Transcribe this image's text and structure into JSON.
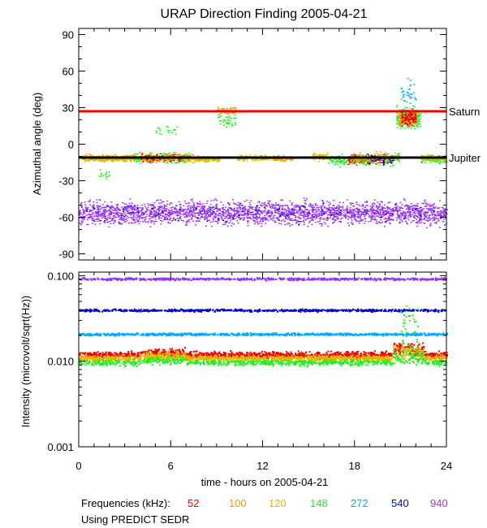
{
  "chart_data": {
    "title": "URAP Direction Finding  2005-04-21",
    "type": "scatter",
    "x": {
      "label": "time - hours on 2005-04-21",
      "range": [
        0,
        24
      ],
      "ticks": [
        0,
        6,
        12,
        18,
        24
      ],
      "tick_labels": [
        "0",
        "6",
        "12",
        "18",
        "24"
      ]
    },
    "panels": [
      {
        "name": "azimuth",
        "ylabel": "Azimuthal angle (deg)",
        "ylim": [
          -95,
          95
        ],
        "yticks": [
          90,
          60,
          30,
          0,
          -30,
          -60,
          -90
        ],
        "ytick_labels": [
          "90",
          "60",
          "30",
          "0",
          "-30",
          "-60",
          "-90"
        ],
        "reference_lines": [
          {
            "name": "Saturn",
            "y": 27,
            "color": "#ee0000"
          },
          {
            "name": "Jupiter",
            "y": -11,
            "color": "#000000"
          }
        ],
        "bands": [
          {
            "frequency": "940",
            "center": -56,
            "spread": 6,
            "x_range": [
              0,
              24
            ]
          },
          {
            "frequency": "120",
            "center": -11,
            "spread": 3,
            "x_range": [
              0,
              20
            ]
          },
          {
            "frequency": "148",
            "center": 25,
            "spread": 10,
            "x_range": [
              20.5,
              22.2
            ]
          }
        ]
      },
      {
        "name": "intensity",
        "ylabel": "Intensity (microvolt/sqrt(Hz))",
        "yscale": "log",
        "ylim": [
          0.001,
          0.11
        ],
        "yticks": [
          0.1,
          0.01,
          0.001
        ],
        "ytick_labels": [
          "0.100",
          "0.010",
          "0.001"
        ],
        "series": [
          {
            "frequency": "940",
            "level": 0.093
          },
          {
            "frequency": "540",
            "level": 0.04
          },
          {
            "frequency": "272",
            "level": 0.021
          },
          {
            "frequency": "100",
            "level": 0.0115
          },
          {
            "frequency": "52",
            "level": 0.0122
          },
          {
            "frequency": "120",
            "level": 0.011
          },
          {
            "frequency": "148",
            "level": 0.0098
          }
        ]
      }
    ],
    "legend": {
      "label": "Frequencies (kHz):",
      "items": [
        {
          "name": "52",
          "color": "#ee0000"
        },
        {
          "name": "100",
          "color": "#ff9900"
        },
        {
          "name": "120",
          "color": "#ddbb00"
        },
        {
          "name": "148",
          "color": "#22ee22"
        },
        {
          "name": "272",
          "color": "#00aaff"
        },
        {
          "name": "540",
          "color": "#0000cc"
        },
        {
          "name": "940",
          "color": "#9933ee"
        }
      ]
    },
    "footnote": "Using PREDICT SEDR"
  }
}
